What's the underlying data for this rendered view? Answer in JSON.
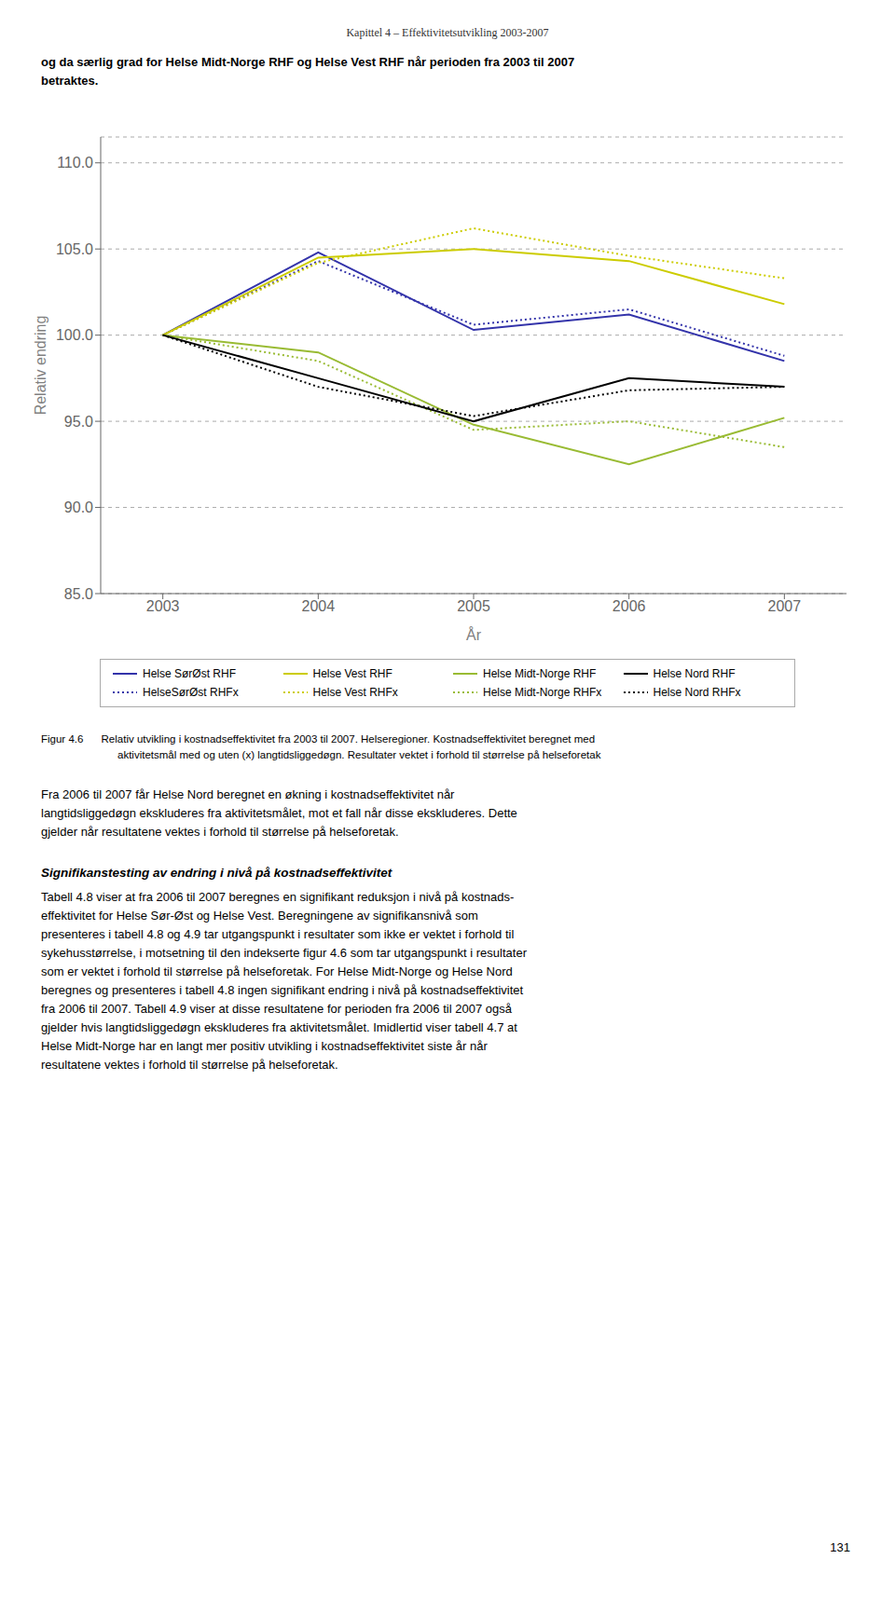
{
  "chart_data": {
    "type": "line",
    "xlabel": "År",
    "ylabel": "Relativ endring",
    "x": [
      2003,
      2004,
      2005,
      2006,
      2007
    ],
    "xlim": [
      2002.6,
      2007.4
    ],
    "xticks": [
      2003,
      2004,
      2005,
      2006,
      2007
    ],
    "ylim": [
      85.0,
      111.5
    ],
    "yticks": [
      {
        "value": 85.0,
        "label": "85.0"
      },
      {
        "value": 90.0,
        "label": "90.0"
      },
      {
        "value": 95.0,
        "label": "95.0"
      },
      {
        "value": 100.0,
        "label": "100.0"
      },
      {
        "value": 105.0,
        "label": "105.0"
      },
      {
        "value": 110.0,
        "label": "110.0"
      }
    ],
    "grid": true,
    "series": [
      {
        "name": "Helse SørØst RHF",
        "color": "#3333aa",
        "line_style": "solid",
        "values": [
          100.0,
          104.8,
          100.3,
          101.2,
          98.5
        ]
      },
      {
        "name": "HelseSørØst RHFx",
        "color": "#3333aa",
        "line_style": "dotted",
        "values": [
          100.0,
          104.3,
          100.6,
          101.5,
          98.8
        ]
      },
      {
        "name": "Helse Vest RHF",
        "color": "#cccc00",
        "line_style": "solid",
        "values": [
          100.0,
          104.5,
          105.0,
          104.3,
          101.8
        ]
      },
      {
        "name": "Helse Vest RHFx",
        "color": "#cccc00",
        "line_style": "dotted",
        "values": [
          100.0,
          104.2,
          106.2,
          104.6,
          103.3
        ]
      },
      {
        "name": "Helse Midt-Norge RHF",
        "color": "#99bb33",
        "line_style": "solid",
        "values": [
          100.0,
          99.0,
          94.8,
          92.5,
          95.2
        ]
      },
      {
        "name": "Helse Midt-Norge RHFx",
        "color": "#99bb33",
        "line_style": "dotted",
        "values": [
          100.0,
          98.5,
          94.5,
          95.0,
          93.5
        ]
      },
      {
        "name": "Helse Nord RHF",
        "color": "#000000",
        "line_style": "solid",
        "values": [
          100.0,
          97.5,
          95.0,
          97.5,
          97.0
        ]
      },
      {
        "name": "Helse Nord RHFx",
        "color": "#000000",
        "line_style": "dotted",
        "values": [
          100.0,
          97.0,
          95.3,
          96.8,
          97.0
        ]
      }
    ],
    "annotations": [
      "Kapittel 4 – Effektivitetsutvikling 2003-2007",
      "og da særlig grad for Helse Midt-Norge RHF og Helse Vest RHF når perioden fra 2003 til 2007",
      "betraktes.",
      "Figur 4.6      Relativ utvikling i kostnadseffektivitet fra 2003 til 2007. Helseregioner. Kostnadseffektivitet beregnet med",
      "aktivitetsmål med og uten (x) langtidsliggedøgn. Resultater vektet i forhold til størrelse på helseforetak",
      "Fra 2006 til 2007 får Helse Nord beregnet en økning i kostnadseffektivitet når",
      "langtidsliggedøgn ekskluderes fra aktivitetsmålet, mot et fall når disse ekskluderes. Dette",
      "gjelder når resultatene vektes i forhold til størrelse på helseforetak.",
      "Signifikanstesting av endring i nivå på kostnadseffektivitet",
      "Tabell 4.8 viser at fra 2006 til 2007 beregnes en signifikant reduksjon i nivå på kostnads-",
      "effektivitet for Helse Sør-Øst og Helse Vest. Beregningene av signifikansnivå som",
      "presenteres i tabell 4.8 og 4.9 tar utgangspunkt i resultater som ikke er vektet i forhold til",
      "sykehusstørrelse, i motsetning til den indekserte figur 4.6 som tar utgangspunkt i resultater",
      "som er vektet i forhold til størrelse på helseforetak. For Helse Midt-Norge og Helse Nord",
      "beregnes og presenteres i tabell 4.8 ingen signifikant endring i nivå på kostnadseffektivitet",
      "fra 2006 til 2007. Tabell 4.9 viser at disse resultatene for perioden fra 2006 til 2007 også",
      "gjelder hvis langtidsliggedøgn ekskluderes fra aktivitetsmålet. Imidlertid viser tabell 4.7 at",
      "Helse Midt-Norge har en langt mer positiv utvikling i kostnadseffektivitet siste år når",
      "resultatene vektes i forhold til størrelse på helseforetak.",
      "131"
    ]
  }
}
